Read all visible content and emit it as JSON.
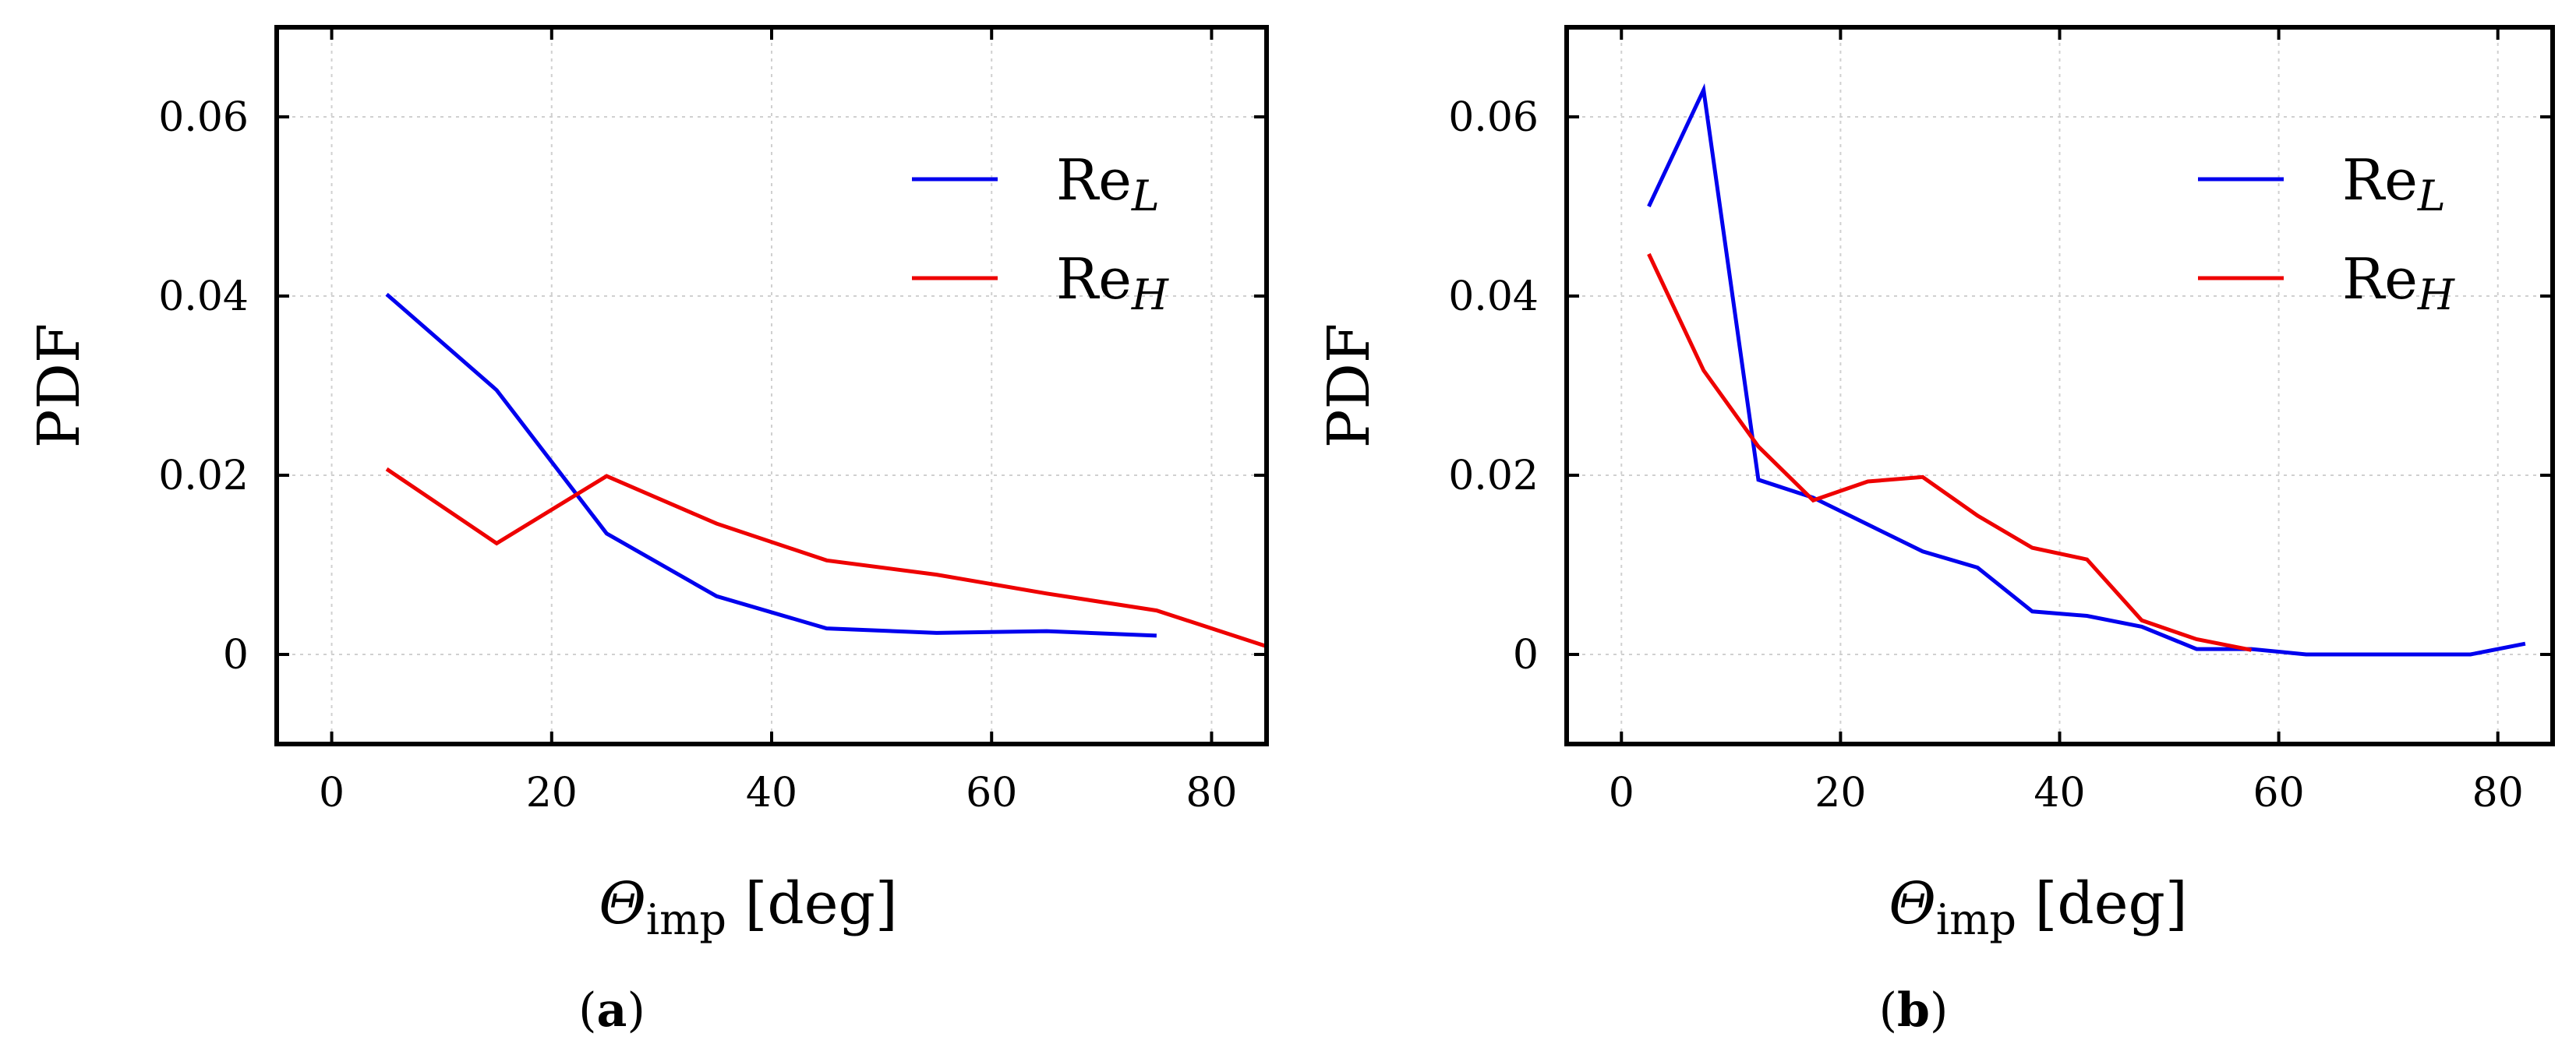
{
  "figure": {
    "panels": [
      {
        "caption_open": "(",
        "caption_letter": "a",
        "caption_close": ")"
      },
      {
        "caption_open": "(",
        "caption_letter": "b",
        "caption_close": ")"
      }
    ]
  },
  "colors": {
    "Re_L": "#0000ee",
    "Re_H": "#ee0000",
    "axis": "#000000",
    "grid": "#d0d0d0"
  },
  "chart_data": [
    {
      "type": "line",
      "panel": "a",
      "ylabel": "PDF",
      "xlabel_symbol": "Θ",
      "xlabel_sub": "imp",
      "xlabel_unit": "[deg]",
      "xlim": [
        -5,
        85
      ],
      "ylim": [
        -0.01,
        0.07
      ],
      "xticks": [
        0,
        20,
        40,
        60,
        80
      ],
      "xtick_labels": [
        "0",
        "20",
        "40",
        "60",
        "80"
      ],
      "yticks": [
        0,
        0.02,
        0.04,
        0.06
      ],
      "ytick_labels": [
        "0",
        "0.02",
        "0.04",
        "0.06"
      ],
      "grid": true,
      "legend_position": "top-right",
      "series": [
        {
          "name": "Re_L",
          "label_main": "Re",
          "label_sub": "L",
          "color": "#0000ee",
          "x": [
            5,
            15,
            25,
            35,
            45,
            55,
            65,
            75
          ],
          "y": [
            0.0402,
            0.0295,
            0.0135,
            0.0065,
            0.0029,
            0.0024,
            0.0026,
            0.0021
          ]
        },
        {
          "name": "Re_H",
          "label_main": "Re",
          "label_sub": "H",
          "color": "#ee0000",
          "x": [
            5,
            15,
            25,
            35,
            45,
            55,
            65,
            75,
            85
          ],
          "y": [
            0.0207,
            0.0124,
            0.0199,
            0.0146,
            0.0105,
            0.0089,
            0.0068,
            0.0049,
            0.0009
          ]
        }
      ]
    },
    {
      "type": "line",
      "panel": "b",
      "ylabel": "PDF",
      "xlabel_symbol": "Θ",
      "xlabel_sub": "imp",
      "xlabel_unit": "[deg]",
      "xlim": [
        -5,
        85
      ],
      "ylim": [
        -0.01,
        0.07
      ],
      "xticks": [
        0,
        20,
        40,
        60,
        80
      ],
      "xtick_labels": [
        "0",
        "20",
        "40",
        "60",
        "80"
      ],
      "yticks": [
        0,
        0.02,
        0.04,
        0.06
      ],
      "ytick_labels": [
        "0",
        "0.02",
        "0.04",
        "0.06"
      ],
      "grid": true,
      "legend_position": "top-right",
      "series": [
        {
          "name": "Re_L",
          "label_main": "Re",
          "label_sub": "L",
          "color": "#0000ee",
          "x": [
            2.5,
            7.5,
            12.5,
            17.5,
            22.5,
            27.5,
            32.5,
            37.5,
            42.5,
            47.5,
            52.5,
            57.5,
            62.5,
            67.5,
            72.5,
            77.5,
            82.5
          ],
          "y": [
            0.05,
            0.063,
            0.0195,
            0.0175,
            0.0145,
            0.0115,
            0.0097,
            0.0048,
            0.0043,
            0.0031,
            0.0006,
            0.0006,
            0.0,
            0.0,
            0.0,
            0.0,
            0.0012
          ]
        },
        {
          "name": "Re_H",
          "label_main": "Re",
          "label_sub": "H",
          "color": "#ee0000",
          "x": [
            2.5,
            7.5,
            12.5,
            17.5,
            22.5,
            27.5,
            32.5,
            37.5,
            42.5,
            47.5,
            52.5,
            57.5
          ],
          "y": [
            0.0447,
            0.0317,
            0.0232,
            0.0172,
            0.0193,
            0.0198,
            0.0155,
            0.0119,
            0.0106,
            0.0038,
            0.0017,
            0.0005
          ]
        }
      ]
    }
  ]
}
